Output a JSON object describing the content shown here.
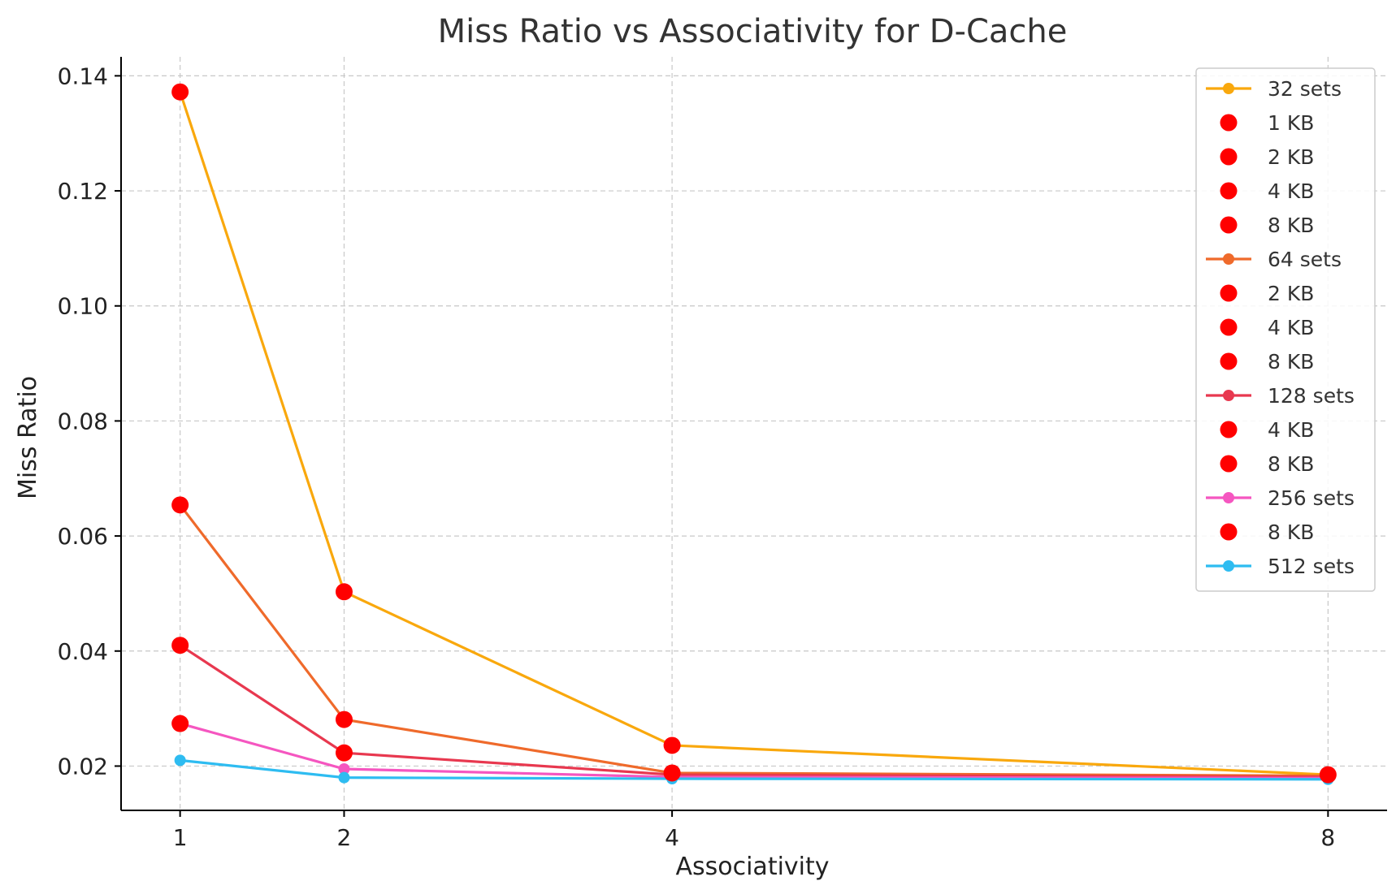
{
  "chart_data": {
    "type": "line",
    "title": "Miss Ratio vs Associativity for D-Cache",
    "xlabel": "Associativity",
    "ylabel": "Miss Ratio",
    "x": [
      1,
      2,
      4,
      8
    ],
    "x_ticks": [
      "1",
      "2",
      "4",
      "8"
    ],
    "y_ticks": [
      "0.02",
      "0.04",
      "0.06",
      "0.08",
      "0.10",
      "0.12",
      "0.14"
    ],
    "xlim": [
      0.64,
      8.36
    ],
    "ylim": [
      0.0123,
      0.1433
    ],
    "grid": true,
    "legend_position": "top-right",
    "highlight_color": "#ff0000",
    "series": [
      {
        "name": "32 sets",
        "color": "#f9a80d",
        "values": [
          0.1372,
          0.0503,
          0.0236,
          0.0185
        ]
      },
      {
        "name": "64 sets",
        "color": "#ef6a2b",
        "values": [
          0.0654,
          0.0281,
          0.0188,
          0.0183
        ]
      },
      {
        "name": "128 sets",
        "color": "#e8384f",
        "values": [
          0.041,
          0.0223,
          0.0185,
          0.0181
        ]
      },
      {
        "name": "256 sets",
        "color": "#f556c0",
        "values": [
          0.0274,
          0.0195,
          0.0181,
          0.0179
        ]
      },
      {
        "name": "512 sets",
        "color": "#2ebcf1",
        "values": [
          0.021,
          0.018,
          0.0178,
          0.0177
        ]
      }
    ],
    "highlights": [
      {
        "label": "1 KB",
        "series": "32 sets",
        "points": [
          [
            1,
            0.1372
          ]
        ]
      },
      {
        "label": "2 KB",
        "series": "32 sets",
        "points": [
          [
            2,
            0.0503
          ]
        ]
      },
      {
        "label": "4 KB",
        "series": "32 sets",
        "points": [
          [
            4,
            0.0236
          ]
        ]
      },
      {
        "label": "8 KB",
        "series": "32 sets",
        "points": [
          [
            8,
            0.0185
          ]
        ]
      },
      {
        "label": "2 KB",
        "series": "64 sets",
        "points": [
          [
            1,
            0.0654
          ]
        ]
      },
      {
        "label": "4 KB",
        "series": "64 sets",
        "points": [
          [
            2,
            0.0281
          ]
        ]
      },
      {
        "label": "8 KB",
        "series": "64 sets",
        "points": [
          [
            4,
            0.0188
          ]
        ]
      },
      {
        "label": "4 KB",
        "series": "128 sets",
        "points": [
          [
            1,
            0.041
          ]
        ]
      },
      {
        "label": "8 KB",
        "series": "128 sets",
        "points": [
          [
            2,
            0.0223
          ]
        ]
      },
      {
        "label": "8 KB",
        "series": "256 sets",
        "points": [
          [
            1,
            0.0274
          ]
        ]
      }
    ],
    "legend": [
      {
        "label": "32 sets",
        "kind": "line",
        "color": "#f9a80d"
      },
      {
        "label": "1 KB",
        "kind": "marker",
        "color": "#ff0000"
      },
      {
        "label": "2 KB",
        "kind": "marker",
        "color": "#ff0000"
      },
      {
        "label": "4 KB",
        "kind": "marker",
        "color": "#ff0000"
      },
      {
        "label": "8 KB",
        "kind": "marker",
        "color": "#ff0000"
      },
      {
        "label": "64 sets",
        "kind": "line",
        "color": "#ef6a2b"
      },
      {
        "label": "2 KB",
        "kind": "marker",
        "color": "#ff0000"
      },
      {
        "label": "4 KB",
        "kind": "marker",
        "color": "#ff0000"
      },
      {
        "label": "8 KB",
        "kind": "marker",
        "color": "#ff0000"
      },
      {
        "label": "128 sets",
        "kind": "line",
        "color": "#e8384f"
      },
      {
        "label": "4 KB",
        "kind": "marker",
        "color": "#ff0000"
      },
      {
        "label": "8 KB",
        "kind": "marker",
        "color": "#ff0000"
      },
      {
        "label": "256 sets",
        "kind": "line",
        "color": "#f556c0"
      },
      {
        "label": "8 KB",
        "kind": "marker",
        "color": "#ff0000"
      },
      {
        "label": "512 sets",
        "kind": "line",
        "color": "#2ebcf1"
      }
    ]
  }
}
